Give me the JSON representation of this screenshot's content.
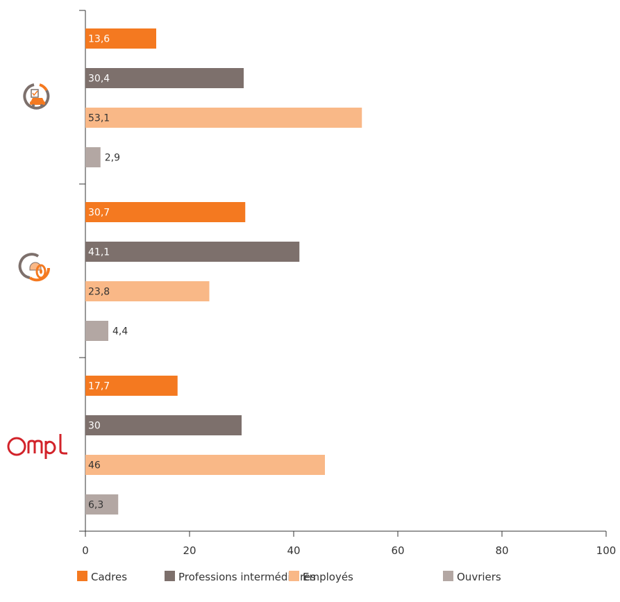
{
  "chart_data": {
    "type": "bar",
    "orientation": "horizontal",
    "categories": [
      "logo-driving-school",
      "logo-wheel",
      "Ompl"
    ],
    "category_icons": [
      "car-checklist-icon",
      "wheel-helmet-icon",
      "ompl-logo"
    ],
    "series": [
      {
        "name": "Cadres",
        "color": "#f47920",
        "values": [
          13.6,
          30.7,
          17.7
        ],
        "labels": [
          "13,6",
          "30,7",
          "17,7"
        ],
        "label_color": "#ffffff"
      },
      {
        "name": "Professions intermédiaires",
        "color": "#7d706c",
        "values": [
          30.4,
          41.1,
          30
        ],
        "labels": [
          "30,4",
          "41,1",
          "30"
        ],
        "label_color": "#ffffff"
      },
      {
        "name": "Employés",
        "color": "#f9b887",
        "values": [
          53.1,
          23.8,
          46
        ],
        "labels": [
          "53,1",
          "23,8",
          "46"
        ],
        "label_color": "#333333"
      },
      {
        "name": "Ouvriers",
        "color": "#b3a7a3",
        "values": [
          2.9,
          4.4,
          6.3
        ],
        "labels": [
          "2,9",
          "4,4",
          "6,3"
        ],
        "label_color": "#333333"
      }
    ],
    "xlim": [
      0,
      100
    ],
    "x_ticks": [
      0,
      20,
      40,
      60,
      80,
      100
    ],
    "x_tick_labels": [
      "0",
      "20",
      "40",
      "60",
      "80",
      "100"
    ],
    "grid": false,
    "legend_position": "bottom"
  }
}
